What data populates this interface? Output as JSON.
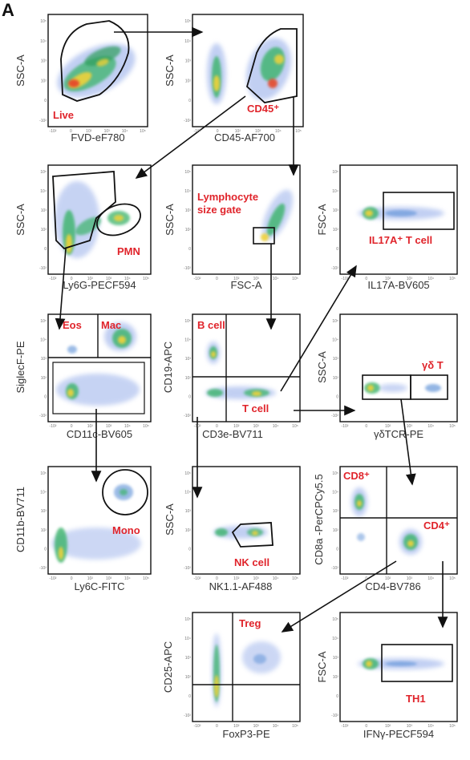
{
  "figure_label": "A",
  "colors": {
    "gate_label": "#e0242b",
    "axis_text": "#333333",
    "line": "#111111"
  },
  "panels": [
    {
      "id": "live",
      "gates": [
        "Live"
      ],
      "xlabel": "FVD-eF780",
      "ylabel": "SSC-A"
    },
    {
      "id": "cd45",
      "gates": [
        "CD45⁺"
      ],
      "xlabel": "CD45-AF700",
      "ylabel": "SSC-A"
    },
    {
      "id": "pmn",
      "gates": [
        "PMN"
      ],
      "xlabel": "Ly6G-PECF594",
      "ylabel": "SSC-A"
    },
    {
      "id": "lymph",
      "gates": [
        "Lymphocyte",
        "size gate"
      ],
      "xlabel": "FSC-A",
      "ylabel": "SSC-A"
    },
    {
      "id": "il17",
      "gates": [
        "IL17A⁺ T cell"
      ],
      "xlabel": "IL17A-BV605",
      "ylabel": "FSC-A"
    },
    {
      "id": "eosmac",
      "gates": [
        "Eos",
        "Mac"
      ],
      "xlabel": "CD11c-BV605",
      "ylabel": "SiglecF-PE"
    },
    {
      "id": "bt",
      "gates": [
        "B cell",
        "T cell"
      ],
      "xlabel": "CD3e-BV711",
      "ylabel": "CD19-APC"
    },
    {
      "id": "gdt",
      "gates": [
        "γδ T"
      ],
      "xlabel": "γδTCR-PE",
      "ylabel": "SSC-A"
    },
    {
      "id": "mono",
      "gates": [
        "Mono"
      ],
      "xlabel": "Ly6C-FITC",
      "ylabel": "CD11b-BV711"
    },
    {
      "id": "nk",
      "gates": [
        "NK cell"
      ],
      "xlabel": "NK1.1-AF488",
      "ylabel": "SSC-A"
    },
    {
      "id": "cd4cd8",
      "gates": [
        "CD8⁺",
        "CD4⁺"
      ],
      "xlabel": "CD4-BV786",
      "ylabel": "CD8a -PerCPCy5.5"
    },
    {
      "id": "treg",
      "gates": [
        "Treg"
      ],
      "xlabel": "FoxP3-PE",
      "ylabel": "CD25-APC"
    },
    {
      "id": "th1",
      "gates": [
        "TH1"
      ],
      "xlabel": "IFNγ-PECF594",
      "ylabel": "FSC-A"
    }
  ],
  "ticks": {
    "y": [
      "10⁵",
      "10⁴",
      "10³",
      "10²",
      "0",
      "-10²"
    ],
    "x": [
      "-10²",
      "0",
      "10²",
      "10³",
      "10⁴",
      "10⁵"
    ]
  }
}
